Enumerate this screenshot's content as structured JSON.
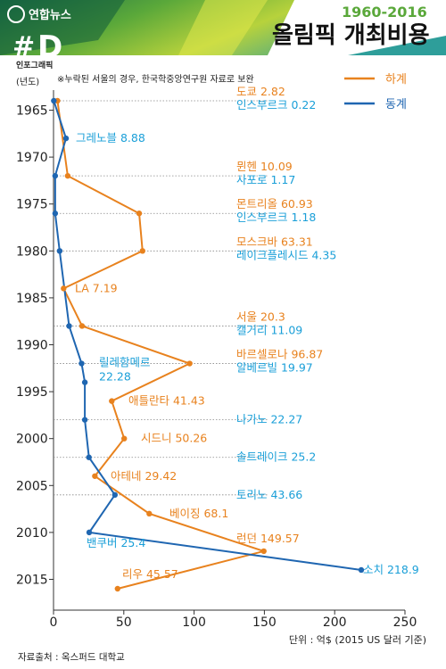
{
  "header": {
    "brand": "연합뉴스",
    "range": "1960-2016",
    "title": "올림픽 개최비용",
    "badge_letter": "D",
    "badge_text": "인포그래픽"
  },
  "note": "※누락된 서울의 경우, 한국학중앙연구원 자료로 보완",
  "source": "자료출처 : 옥스퍼드 대학교",
  "colors": {
    "summer": "#e8821e",
    "winter": "#1f66b1",
    "winter_label": "#1a9fd8",
    "guide": "#888888"
  },
  "chart_data": {
    "type": "line",
    "title": "올림픽 개최비용",
    "subtitle": "1960-2016",
    "ylabel": "(년도)",
    "unit_label": "단위 : 억$ (2015 US 달러 기준)",
    "xlim": [
      0,
      250
    ],
    "ylim": [
      1963,
      2017
    ],
    "x_ticks": [
      "0",
      "50",
      "100",
      "150",
      "200",
      "250"
    ],
    "y_ticks": [
      "1965",
      "1970",
      "1975",
      "1980",
      "1985",
      "1990",
      "1995",
      "2000",
      "2005",
      "2010",
      "2015"
    ],
    "legend": {
      "summer": "하계",
      "winter": "동계"
    },
    "series": [
      {
        "name": "하계",
        "points": [
          {
            "year": 1964,
            "value": 2.82,
            "label": "도쿄 2.82"
          },
          {
            "year": 1972,
            "value": 10.09,
            "label": "뮌헨 10.09"
          },
          {
            "year": 1976,
            "value": 60.93,
            "label": "몬트리올 60.93"
          },
          {
            "year": 1980,
            "value": 63.31,
            "label": "모스크바 63.31"
          },
          {
            "year": 1984,
            "value": 7.19,
            "label": "LA 7.19"
          },
          {
            "year": 1988,
            "value": 20.3,
            "label": "서울 20.3"
          },
          {
            "year": 1992,
            "value": 96.87,
            "label": "바르셀로나 96.87"
          },
          {
            "year": 1996,
            "value": 41.43,
            "label": "애틀란타 41.43"
          },
          {
            "year": 2000,
            "value": 50.26,
            "label": "시드니 50.26"
          },
          {
            "year": 2004,
            "value": 29.42,
            "label": "아테네 29.42"
          },
          {
            "year": 2008,
            "value": 68.1,
            "label": "베이징 68.1"
          },
          {
            "year": 2012,
            "value": 149.57,
            "label": "런던 149.57"
          },
          {
            "year": 2016,
            "value": 45.57,
            "label": "리우 45.57"
          }
        ]
      },
      {
        "name": "동계",
        "points": [
          {
            "year": 1964,
            "value": 0.22,
            "label": "인스부르크 0.22"
          },
          {
            "year": 1968,
            "value": 8.88,
            "label": "그레노블 8.88"
          },
          {
            "year": 1972,
            "value": 1.17,
            "label": "사포로 1.17"
          },
          {
            "year": 1976,
            "value": 1.18,
            "label": "인스부르크 1.18"
          },
          {
            "year": 1980,
            "value": 4.35,
            "label": "레이크플레시드 4.35"
          },
          {
            "year": 1988,
            "value": 11.09,
            "label": "캘거리 11.09"
          },
          {
            "year": 1992,
            "value": 19.97,
            "label": "알베르빌 19.97"
          },
          {
            "year": 1994,
            "value": 22.28,
            "label_lines": [
              "릴레함메르",
              "22.28"
            ]
          },
          {
            "year": 1998,
            "value": 22.27,
            "label": "나가노 22.27"
          },
          {
            "year": 2002,
            "value": 25.2,
            "label": "솔트레이크 25.2"
          },
          {
            "year": 2006,
            "value": 43.66,
            "label": "토리노 43.66"
          },
          {
            "year": 2010,
            "value": 25.4,
            "label": "밴쿠버 25.4"
          },
          {
            "year": 2014,
            "value": 218.9,
            "label": "소치 218.9"
          }
        ]
      }
    ]
  }
}
